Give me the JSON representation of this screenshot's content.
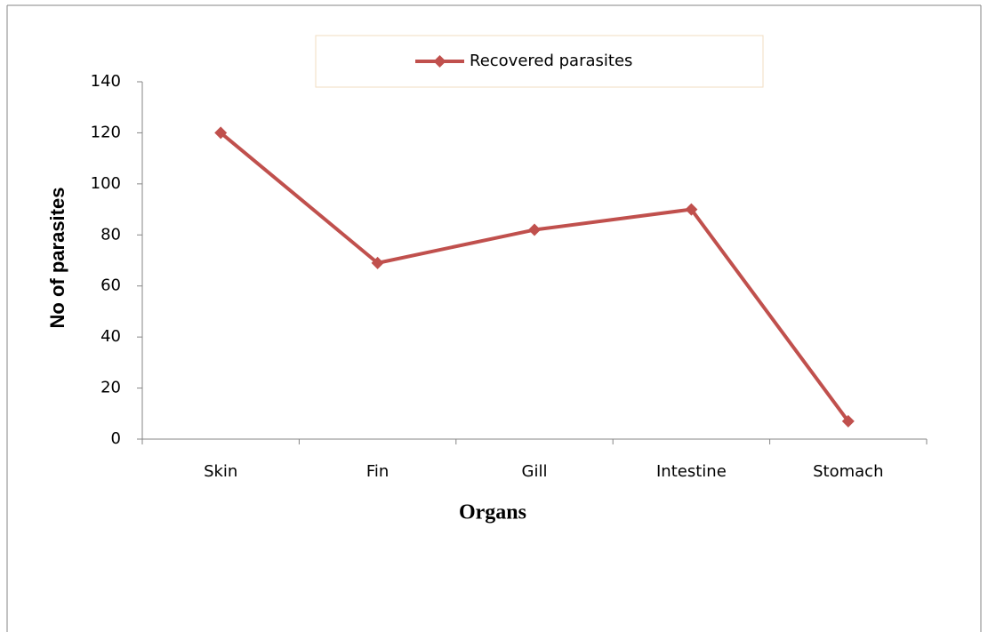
{
  "chart_data": {
    "type": "line",
    "x_label": "Organs",
    "y_label": "No of parasites",
    "categories": [
      "Skin",
      "Fin",
      "Gill",
      "Intestine",
      "Stomach"
    ],
    "series": [
      {
        "name": "Recovered parasites",
        "color": "#c0504d",
        "values": [
          120,
          69,
          82,
          90,
          7
        ]
      }
    ],
    "ylim": [
      0,
      140
    ],
    "yticks": [
      0,
      20,
      40,
      60,
      80,
      100,
      120,
      140
    ],
    "legend": "top"
  }
}
